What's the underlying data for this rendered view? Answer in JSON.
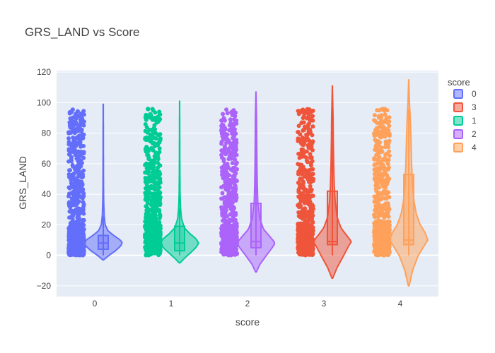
{
  "chart_data": {
    "type": "violin",
    "title": "GRS_LAND vs Score",
    "xlabel": "score",
    "ylabel": "GRS_LAND",
    "categories": [
      "0",
      "1",
      "2",
      "3",
      "4"
    ],
    "ylim": [
      -27,
      121
    ],
    "y_ticks": [
      -20,
      0,
      20,
      40,
      60,
      80,
      100,
      120
    ],
    "grid": true,
    "points_shown": "all",
    "points_range": [
      0,
      96
    ],
    "legend": {
      "title": "score",
      "placement": "right",
      "order": [
        "0",
        "3",
        "1",
        "2",
        "4"
      ]
    },
    "series": [
      {
        "name": "0",
        "category": "0",
        "color": "#636efa",
        "kde_min": -3,
        "kde_max": 99,
        "box": {
          "lower_fence": 0,
          "q1": 4,
          "median": 8,
          "q3": 13,
          "upper_fence": 26
        },
        "kde_profile": [
          [
            -3,
            0.02
          ],
          [
            0,
            0.3
          ],
          [
            3,
            0.65
          ],
          [
            6,
            0.9
          ],
          [
            8,
            1.0
          ],
          [
            10,
            0.9
          ],
          [
            13,
            0.55
          ],
          [
            16,
            0.25
          ],
          [
            20,
            0.1
          ],
          [
            26,
            0.05
          ],
          [
            35,
            0.025
          ],
          [
            45,
            0.015
          ],
          [
            60,
            0.01
          ],
          [
            75,
            0.008
          ],
          [
            90,
            0.005
          ],
          [
            99,
            0.002
          ]
        ]
      },
      {
        "name": "1",
        "category": "1",
        "color": "#00cc96",
        "kde_min": -5,
        "kde_max": 101,
        "box": {
          "lower_fence": 0,
          "q1": 3,
          "median": 8,
          "q3": 19,
          "upper_fence": 31
        },
        "kde_profile": [
          [
            -5,
            0.02
          ],
          [
            -2,
            0.25
          ],
          [
            2,
            0.6
          ],
          [
            5,
            0.85
          ],
          [
            8,
            1.0
          ],
          [
            11,
            0.85
          ],
          [
            14,
            0.55
          ],
          [
            18,
            0.25
          ],
          [
            24,
            0.1
          ],
          [
            31,
            0.05
          ],
          [
            40,
            0.025
          ],
          [
            55,
            0.015
          ],
          [
            70,
            0.01
          ],
          [
            85,
            0.008
          ],
          [
            101,
            0.002
          ]
        ]
      },
      {
        "name": "2",
        "category": "2",
        "color": "#ab63fa",
        "kde_min": -11,
        "kde_max": 107,
        "box": {
          "lower_fence": 0,
          "q1": 5,
          "median": 9,
          "q3": 34,
          "upper_fence": 85
        },
        "kde_profile": [
          [
            -11,
            0.02
          ],
          [
            -6,
            0.2
          ],
          [
            0,
            0.55
          ],
          [
            5,
            0.85
          ],
          [
            8,
            1.0
          ],
          [
            12,
            0.75
          ],
          [
            17,
            0.4
          ],
          [
            24,
            0.2
          ],
          [
            34,
            0.1
          ],
          [
            45,
            0.07
          ],
          [
            60,
            0.05
          ],
          [
            75,
            0.04
          ],
          [
            90,
            0.03
          ],
          [
            100,
            0.015
          ],
          [
            107,
            0.002
          ]
        ]
      },
      {
        "name": "3",
        "category": "3",
        "color": "#ef553b",
        "kde_min": -15,
        "kde_max": 111,
        "box": {
          "lower_fence": 0,
          "q1": 7,
          "median": 9,
          "q3": 42,
          "upper_fence": 96
        },
        "kde_profile": [
          [
            -15,
            0.02
          ],
          [
            -8,
            0.25
          ],
          [
            0,
            0.6
          ],
          [
            6,
            0.85
          ],
          [
            9,
            1.0
          ],
          [
            13,
            0.75
          ],
          [
            18,
            0.45
          ],
          [
            25,
            0.25
          ],
          [
            35,
            0.15
          ],
          [
            45,
            0.1
          ],
          [
            60,
            0.07
          ],
          [
            75,
            0.05
          ],
          [
            90,
            0.04
          ],
          [
            100,
            0.02
          ],
          [
            111,
            0.002
          ]
        ]
      },
      {
        "name": "4",
        "category": "4",
        "color": "#ffa15a",
        "kde_min": -20,
        "kde_max": 115,
        "box": {
          "lower_fence": 0,
          "q1": 7,
          "median": 10,
          "q3": 53,
          "upper_fence": 96
        },
        "kde_profile": [
          [
            -20,
            0.02
          ],
          [
            -10,
            0.2
          ],
          [
            0,
            0.5
          ],
          [
            6,
            0.8
          ],
          [
            10,
            1.0
          ],
          [
            15,
            0.85
          ],
          [
            20,
            0.6
          ],
          [
            27,
            0.4
          ],
          [
            35,
            0.28
          ],
          [
            45,
            0.2
          ],
          [
            60,
            0.15
          ],
          [
            75,
            0.12
          ],
          [
            90,
            0.08
          ],
          [
            100,
            0.04
          ],
          [
            115,
            0.002
          ]
        ]
      }
    ]
  }
}
